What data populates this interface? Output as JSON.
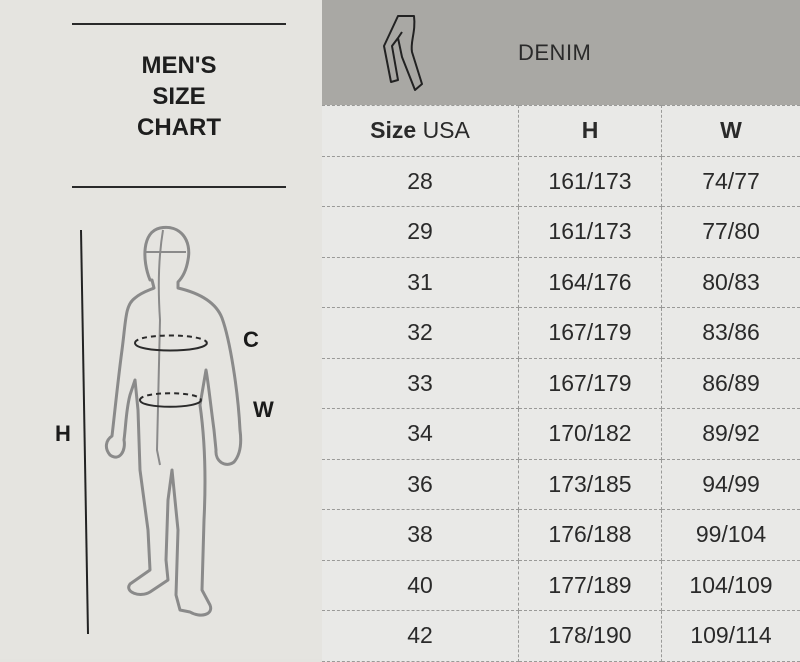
{
  "chart_title": [
    "MEN'S",
    "SIZE",
    "CHART"
  ],
  "figure_labels": {
    "height": "H",
    "chest": "C",
    "waist": "W"
  },
  "table": {
    "category": "DENIM",
    "category_icon": "pants-icon",
    "headers": {
      "size_bold": "Size",
      "size_region": "USA",
      "h": "H",
      "w": "W"
    },
    "rows": [
      {
        "size": "28",
        "h": "161/173",
        "w": "74/77"
      },
      {
        "size": "29",
        "h": "161/173",
        "w": "77/80"
      },
      {
        "size": "31",
        "h": "164/176",
        "w": "80/83"
      },
      {
        "size": "32",
        "h": "167/179",
        "w": "83/86"
      },
      {
        "size": "33",
        "h": "167/179",
        "w": "86/89"
      },
      {
        "size": "34",
        "h": "170/182",
        "w": "89/92"
      },
      {
        "size": "36",
        "h": "173/185",
        "w": "94/99"
      },
      {
        "size": "38",
        "h": "176/188",
        "w": "99/104"
      },
      {
        "size": "40",
        "h": "177/189",
        "w": "104/109"
      },
      {
        "size": "42",
        "h": "178/190",
        "w": "109/114"
      }
    ]
  }
}
